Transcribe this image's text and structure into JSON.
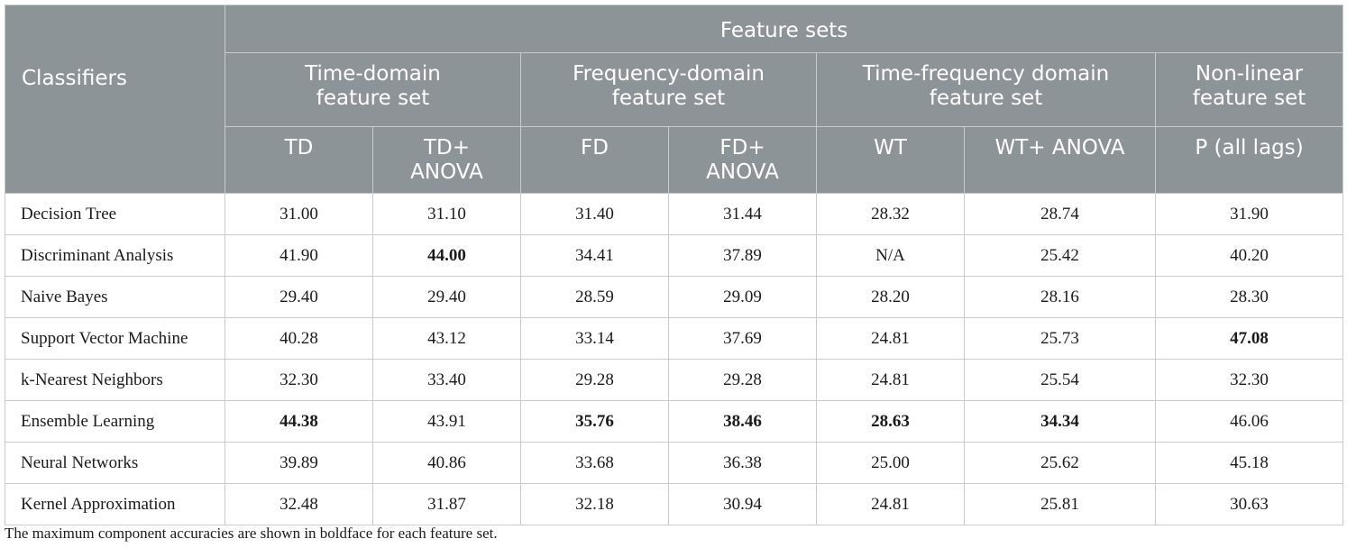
{
  "header": {
    "classifiers_label": "Classifiers",
    "feature_sets_label": "Feature sets",
    "groups": [
      {
        "line1": "Time-domain",
        "line2": "feature set"
      },
      {
        "line1": "Frequency-domain",
        "line2": "feature set"
      },
      {
        "line1": "Time-frequency domain",
        "line2": "feature set"
      },
      {
        "line1": "Non-linear",
        "line2": "feature set"
      }
    ],
    "subcolumns": [
      {
        "line1": "TD",
        "line2": ""
      },
      {
        "line1": "TD+",
        "line2": "ANOVA"
      },
      {
        "line1": "FD",
        "line2": ""
      },
      {
        "line1": "FD+",
        "line2": "ANOVA"
      },
      {
        "line1": "WT",
        "line2": ""
      },
      {
        "line1": "WT+ ANOVA",
        "line2": ""
      },
      {
        "line1": "P (all lags)",
        "line2": ""
      }
    ]
  },
  "rows": [
    {
      "name": "Decision Tree",
      "values": [
        "31.00",
        "31.10",
        "31.40",
        "31.44",
        "28.32",
        "28.74",
        "31.90"
      ],
      "bold": []
    },
    {
      "name": "Discriminant Analysis",
      "values": [
        "41.90",
        "44.00",
        "34.41",
        "37.89",
        "N/A",
        "25.42",
        "40.20"
      ],
      "bold": [
        1
      ]
    },
    {
      "name": "Naive Bayes",
      "values": [
        "29.40",
        "29.40",
        "28.59",
        "29.09",
        "28.20",
        "28.16",
        "28.30"
      ],
      "bold": []
    },
    {
      "name": "Support Vector Machine",
      "values": [
        "40.28",
        "43.12",
        "33.14",
        "37.69",
        "24.81",
        "25.73",
        "47.08"
      ],
      "bold": [
        6
      ]
    },
    {
      "name": "k-Nearest Neighbors",
      "values": [
        "32.30",
        "33.40",
        "29.28",
        "29.28",
        "24.81",
        "25.54",
        "32.30"
      ],
      "bold": []
    },
    {
      "name": "Ensemble Learning",
      "values": [
        "44.38",
        "43.91",
        "35.76",
        "38.46",
        "28.63",
        "34.34",
        "46.06"
      ],
      "bold": [
        0,
        2,
        3,
        4,
        5
      ]
    },
    {
      "name": "Neural Networks",
      "values": [
        "39.89",
        "40.86",
        "33.68",
        "36.38",
        "25.00",
        "25.62",
        "45.18"
      ],
      "bold": []
    },
    {
      "name": "Kernel Approximation",
      "values": [
        "32.48",
        "31.87",
        "32.18",
        "30.94",
        "24.81",
        "25.81",
        "30.63"
      ],
      "bold": []
    }
  ],
  "footnote": "The maximum component accuracies are shown in boldface for each feature set."
}
